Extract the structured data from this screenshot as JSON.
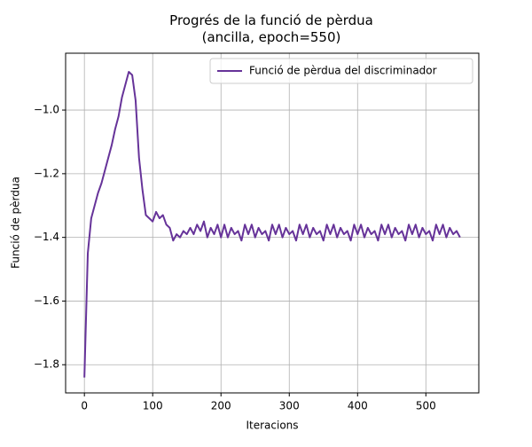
{
  "chart_data": {
    "type": "line",
    "title": "Progrés de la funció de pèrdua\n(ancilla, epoch=550)",
    "xlabel": "Iteracions",
    "ylabel": "Funció de pèrdua",
    "x": [
      0,
      5,
      10,
      15,
      20,
      25,
      30,
      35,
      40,
      45,
      50,
      55,
      60,
      65,
      70,
      75,
      80,
      85,
      90,
      95,
      100,
      105,
      110,
      115,
      120,
      125,
      130,
      135,
      140,
      145,
      150,
      155,
      160,
      165,
      170,
      175,
      180,
      185,
      190,
      195,
      200,
      205,
      210,
      215,
      220,
      225,
      230,
      235,
      240,
      245,
      250,
      255,
      260,
      265,
      270,
      275,
      280,
      285,
      290,
      295,
      300,
      305,
      310,
      315,
      320,
      325,
      330,
      335,
      340,
      345,
      350,
      355,
      360,
      365,
      370,
      375,
      380,
      385,
      390,
      395,
      400,
      405,
      410,
      415,
      420,
      425,
      430,
      435,
      440,
      445,
      450,
      455,
      460,
      465,
      470,
      475,
      480,
      485,
      490,
      495,
      500,
      505,
      510,
      515,
      520,
      525,
      530,
      535,
      540,
      545,
      550
    ],
    "series": [
      {
        "name": "Funció de pèrdua del discriminador",
        "color": "#663399",
        "values": [
          -1.84,
          -1.45,
          -1.34,
          -1.3,
          -1.26,
          -1.23,
          -1.19,
          -1.15,
          -1.11,
          -1.06,
          -1.02,
          -0.96,
          -0.92,
          -0.88,
          -0.89,
          -0.97,
          -1.15,
          -1.25,
          -1.33,
          -1.34,
          -1.35,
          -1.32,
          -1.34,
          -1.33,
          -1.36,
          -1.37,
          -1.41,
          -1.39,
          -1.4,
          -1.38,
          -1.39,
          -1.37,
          -1.39,
          -1.36,
          -1.38,
          -1.35,
          -1.4,
          -1.37,
          -1.39,
          -1.36,
          -1.4,
          -1.36,
          -1.4,
          -1.37,
          -1.39,
          -1.38,
          -1.41,
          -1.36,
          -1.39,
          -1.36,
          -1.4,
          -1.37,
          -1.39,
          -1.38,
          -1.41,
          -1.36,
          -1.39,
          -1.36,
          -1.4,
          -1.37,
          -1.39,
          -1.38,
          -1.41,
          -1.36,
          -1.39,
          -1.36,
          -1.4,
          -1.37,
          -1.39,
          -1.38,
          -1.41,
          -1.36,
          -1.39,
          -1.36,
          -1.4,
          -1.37,
          -1.39,
          -1.38,
          -1.41,
          -1.36,
          -1.39,
          -1.36,
          -1.4,
          -1.37,
          -1.39,
          -1.38,
          -1.41,
          -1.36,
          -1.39,
          -1.36,
          -1.4,
          -1.37,
          -1.39,
          -1.38,
          -1.41,
          -1.36,
          -1.39,
          -1.36,
          -1.4,
          -1.37,
          -1.39,
          -1.38,
          -1.41,
          -1.36,
          -1.39,
          -1.36,
          -1.4,
          -1.37,
          -1.39,
          -1.38,
          -1.4
        ]
      }
    ],
    "xlim": [
      -27.5,
      577.5
    ],
    "ylim": [
      -1.8885,
      -0.8215
    ],
    "xticks": [
      0,
      100,
      200,
      300,
      400,
      500
    ],
    "yticks": [
      {
        "value": -1.8,
        "label": "−1.8"
      },
      {
        "value": -1.6,
        "label": "−1.6"
      },
      {
        "value": -1.4,
        "label": "−1.4"
      },
      {
        "value": -1.2,
        "label": "−1.2"
      },
      {
        "value": -1.0,
        "label": "−1.0"
      }
    ],
    "grid": true,
    "legend": "upper right"
  }
}
